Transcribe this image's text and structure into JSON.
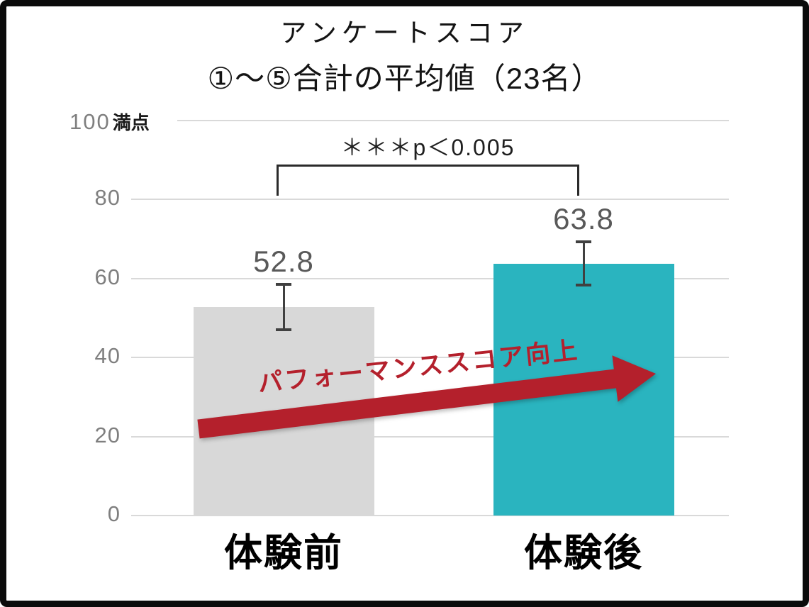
{
  "frame": {
    "border_color": "#0b0b0b",
    "background": "#ffffff"
  },
  "title": {
    "line1": "アンケートスコア",
    "line2": "①～⑤合計の平均値（23名）"
  },
  "colors": {
    "bar_before": "#d8d8d8",
    "bar_after": "#2ab4bf",
    "arrow": "#b4202c",
    "gridline": "#d9d9d9",
    "tick_label": "#7f7f7f",
    "value_label": "#595959",
    "error_bar": "#404040"
  },
  "chart_data": {
    "type": "bar",
    "title": "アンケートスコア ①～⑤合計の平均値（23名）",
    "sample_size": 23,
    "categories": [
      "体験前",
      "体験後"
    ],
    "values": [
      52.8,
      63.8
    ],
    "value_labels": [
      "52.8",
      "63.8"
    ],
    "errors": [
      5.8,
      5.5
    ],
    "bar_colors": [
      "#d8d8d8",
      "#2ab4bf"
    ],
    "ylim": [
      0,
      100
    ],
    "yticks": [
      0,
      20,
      40,
      60,
      80,
      100
    ],
    "y_axis_top_value": "100",
    "y_axis_top_unit": "満点",
    "grid": true,
    "legend_position": "none",
    "annotations": {
      "significance": "＊＊＊p＜0.005",
      "arrow_label": "パフォーマンススコア向上"
    }
  }
}
